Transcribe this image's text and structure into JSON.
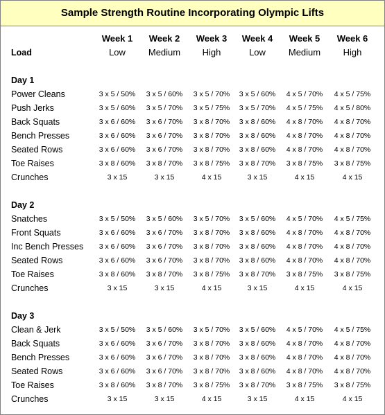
{
  "title": "Sample Strength Routine Incorporating Olympic Lifts",
  "load_label": "Load",
  "columns": [
    {
      "week": "Week 1",
      "load": "Low"
    },
    {
      "week": "Week 2",
      "load": "Medium"
    },
    {
      "week": "Week 3",
      "load": "High"
    },
    {
      "week": "Week 4",
      "load": "Low"
    },
    {
      "week": "Week 5",
      "load": "Medium"
    },
    {
      "week": "Week 6",
      "load": "High"
    }
  ],
  "days": [
    {
      "name": "Day 1",
      "rows": [
        {
          "exercise": "Power Cleans",
          "cells": [
            "3 x 5 / 50%",
            "3 x 5 / 60%",
            "3 x 5 / 70%",
            "3 x 5 / 60%",
            "4 x 5 / 70%",
            "4 x 5 / 75%"
          ]
        },
        {
          "exercise": "Push Jerks",
          "cells": [
            "3 x 5 / 60%",
            "3 x 5 / 70%",
            "3 x 5 / 75%",
            "3 x 5 / 70%",
            "4 x 5 / 75%",
            "4 x 5 / 80%"
          ]
        },
        {
          "exercise": "Back Squats",
          "cells": [
            "3 x 6 / 60%",
            "3 x 6 / 70%",
            "3 x 8 / 70%",
            "3 x 8 / 60%",
            "4 x 8 / 70%",
            "4 x 8 / 70%"
          ]
        },
        {
          "exercise": "Bench Presses",
          "cells": [
            "3 x 6 / 60%",
            "3 x 6 / 70%",
            "3 x 8 / 70%",
            "3 x 8 / 60%",
            "4 x 8 / 70%",
            "4 x 8 / 70%"
          ]
        },
        {
          "exercise": "Seated Rows",
          "cells": [
            "3 x 6 / 60%",
            "3 x 6 / 70%",
            "3 x 8 / 70%",
            "3 x 8 / 60%",
            "4 x 8 / 70%",
            "4 x 8 / 70%"
          ]
        },
        {
          "exercise": "Toe Raises",
          "cells": [
            "3 x 8 / 60%",
            "3 x 8 / 70%",
            "3 x 8 / 75%",
            "3 x 8 / 70%",
            "3 x 8 / 75%",
            "3 x 8 / 75%"
          ]
        },
        {
          "exercise": "Crunches",
          "cells": [
            "3 x 15",
            "3 x 15",
            "4 x 15",
            "3 x 15",
            "4 x 15",
            "4 x 15"
          ]
        }
      ]
    },
    {
      "name": "Day 2",
      "rows": [
        {
          "exercise": "Snatches",
          "cells": [
            "3 x 5 / 50%",
            "3 x 5 / 60%",
            "3 x 5 / 70%",
            "3 x 5 / 60%",
            "4 x 5 / 70%",
            "4 x 5 / 75%"
          ]
        },
        {
          "exercise": "Front Squats",
          "cells": [
            "3 x 6 / 60%",
            "3 x 6 / 70%",
            "3 x 8 / 70%",
            "3 x 8 / 60%",
            "4 x 8 / 70%",
            "4 x 8 / 70%"
          ]
        },
        {
          "exercise": "Inc Bench Presses",
          "cells": [
            "3 x 6 / 60%",
            "3 x 6 / 70%",
            "3 x 8 / 70%",
            "3 x 8 / 60%",
            "4 x 8 / 70%",
            "4 x 8 / 70%"
          ]
        },
        {
          "exercise": "Seated Rows",
          "cells": [
            "3 x 6 / 60%",
            "3 x 6 / 70%",
            "3 x 8 / 70%",
            "3 x 8 / 60%",
            "4 x 8 / 70%",
            "4 x 8 / 70%"
          ]
        },
        {
          "exercise": "Toe Raises",
          "cells": [
            "3 x 8 / 60%",
            "3 x 8 / 70%",
            "3 x 8 / 75%",
            "3 x 8 / 70%",
            "3 x 8 / 75%",
            "3 x 8 / 75%"
          ]
        },
        {
          "exercise": "Crunches",
          "cells": [
            "3 x 15",
            "3 x 15",
            "4 x 15",
            "3 x 15",
            "4 x 15",
            "4 x 15"
          ]
        }
      ]
    },
    {
      "name": "Day 3",
      "rows": [
        {
          "exercise": "Clean & Jerk",
          "cells": [
            "3 x 5 / 50%",
            "3 x 5 / 60%",
            "3 x 5 / 70%",
            "3 x 5 / 60%",
            "4 x 5 / 70%",
            "4 x 5 / 75%"
          ]
        },
        {
          "exercise": "Back Squats",
          "cells": [
            "3 x 6 / 60%",
            "3 x 6 / 70%",
            "3 x 8 / 70%",
            "3 x 8 / 60%",
            "4 x 8 / 70%",
            "4 x 8 / 70%"
          ]
        },
        {
          "exercise": "Bench Presses",
          "cells": [
            "3 x 6 / 60%",
            "3 x 6 / 70%",
            "3 x 8 / 70%",
            "3 x 8 / 60%",
            "4 x 8 / 70%",
            "4 x 8 / 70%"
          ]
        },
        {
          "exercise": "Seated Rows",
          "cells": [
            "3 x 6 / 60%",
            "3 x 6 / 70%",
            "3 x 8 / 70%",
            "3 x 8 / 60%",
            "4 x 8 / 70%",
            "4 x 8 / 70%"
          ]
        },
        {
          "exercise": "Toe Raises",
          "cells": [
            "3 x 8 / 60%",
            "3 x 8 / 70%",
            "3 x 8 / 75%",
            "3 x 8 / 70%",
            "3 x 8 / 75%",
            "3 x 8 / 75%"
          ]
        },
        {
          "exercise": "Crunches",
          "cells": [
            "3 x 15",
            "3 x 15",
            "4 x 15",
            "3 x 15",
            "4 x 15",
            "4 x 15"
          ]
        }
      ]
    }
  ]
}
